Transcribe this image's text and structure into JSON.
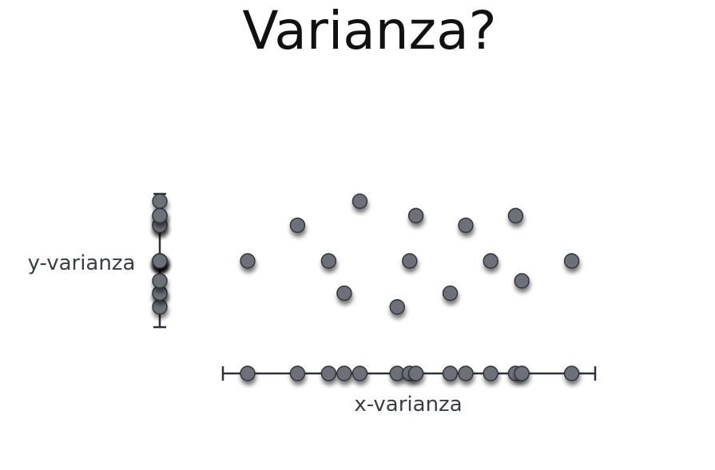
{
  "title": "Varianza?",
  "labels": {
    "x_axis": "x-varianza",
    "y_axis": "y-varianza"
  },
  "colors": {
    "dot_fill": "#6d7078",
    "dot_stroke": "#2e3138",
    "axis": "#2e3138",
    "text": "#3a3d44"
  },
  "chart_data": {
    "type": "scatter",
    "points": [
      {
        "x": 0.0,
        "y": 0.0
      },
      {
        "x": 0.16,
        "y": 0.52
      },
      {
        "x": 0.26,
        "y": 0.0
      },
      {
        "x": 0.31,
        "y": -0.47
      },
      {
        "x": 0.36,
        "y": 0.87
      },
      {
        "x": 0.48,
        "y": -0.67
      },
      {
        "x": 0.52,
        "y": 0.0
      },
      {
        "x": 0.54,
        "y": 0.66
      },
      {
        "x": 0.65,
        "y": -0.47
      },
      {
        "x": 0.7,
        "y": 0.52
      },
      {
        "x": 0.78,
        "y": 0.0
      },
      {
        "x": 0.86,
        "y": 0.66
      },
      {
        "x": 0.88,
        "y": -0.29
      },
      {
        "x": 1.04,
        "y": 0.0
      }
    ],
    "xlim": [
      -0.08,
      1.12
    ],
    "ylim": [
      -0.97,
      1.0
    ]
  }
}
